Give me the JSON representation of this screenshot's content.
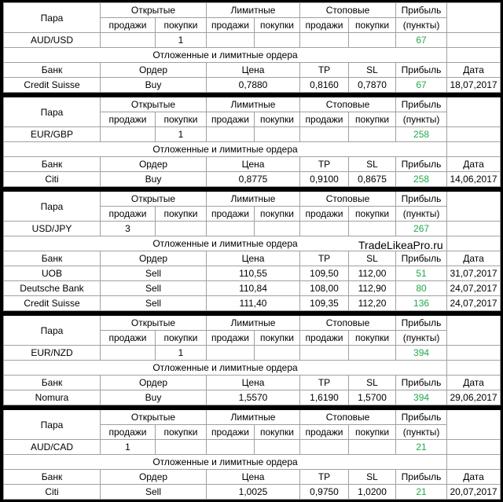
{
  "labels": {
    "pair": "Пара",
    "open": "Открытые",
    "limit": "Лимитные",
    "stop": "Стоповые",
    "profit": "Прибыль",
    "sell": "продажи",
    "buy": "покупки",
    "points": "(пункты)",
    "pending": "Отложенные и лимитные ордера",
    "bank": "Банк",
    "order": "Ордер",
    "price": "Цена",
    "tp": "TP",
    "sl": "SL",
    "date": "Дата"
  },
  "sections": [
    {
      "pair": {
        "name": "AUD/USD",
        "open_buy": 1,
        "profit": 67
      },
      "orders": [
        {
          "bank": "Credit Suisse",
          "order": "Buy",
          "price": "0,7880",
          "tp": "0,8160",
          "sl": "0,7870",
          "profit": 67,
          "date": "18,07,2017"
        }
      ]
    },
    {
      "pair": {
        "name": "EUR/GBP",
        "open_buy": 1,
        "profit": 258
      },
      "orders": [
        {
          "bank": "Citi",
          "order": "Buy",
          "price": "0,8775",
          "tp": "0,9100",
          "sl": "0,8675",
          "profit": 258,
          "date": "14,06,2017"
        }
      ]
    },
    {
      "pair": {
        "name": "USD/JPY",
        "open_sell": 3,
        "profit": 267
      },
      "watermark": "TradeLikeaPro.ru",
      "orders": [
        {
          "bank": "UOB",
          "order": "Sell",
          "price": "110,55",
          "tp": "109,50",
          "sl": "112,00",
          "profit": 51,
          "date": "31,07,2017"
        },
        {
          "bank": "Deutsche Bank",
          "order": "Sell",
          "price": "110,84",
          "tp": "108,00",
          "sl": "112,90",
          "profit": 80,
          "date": "24,07,2017"
        },
        {
          "bank": "Credit Suisse",
          "order": "Sell",
          "price": "111,40",
          "tp": "109,35",
          "sl": "112,20",
          "profit": 136,
          "date": "24,07,2017"
        }
      ]
    },
    {
      "pair": {
        "name": "EUR/NZD",
        "open_buy": 1,
        "profit": 394
      },
      "orders": [
        {
          "bank": "Nomura",
          "order": "Buy",
          "price": "1,5570",
          "tp": "1,6190",
          "sl": "1,5700",
          "profit": 394,
          "date": "29,06,2017"
        }
      ]
    },
    {
      "pair": {
        "name": "AUD/CAD",
        "open_sell": 1,
        "profit": 21
      },
      "orders": [
        {
          "bank": "Citi",
          "order": "Sell",
          "price": "1,0025",
          "tp": "0,9750",
          "sl": "1,0200",
          "profit": 21,
          "date": "20,07,2017"
        }
      ]
    }
  ]
}
